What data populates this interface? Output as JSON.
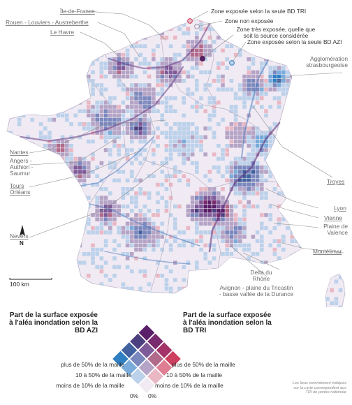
{
  "map": {
    "land_color": "#efeaf3",
    "border_color": "#cfc8d8",
    "water_color": "#ffffff"
  },
  "places_left": [
    {
      "id": "ile-de-france",
      "text": "Île-de-France"
    },
    {
      "id": "rouen",
      "text": "Rouen - Louviers - Austreberthe"
    },
    {
      "id": "le-havre",
      "text": "Le Havre"
    },
    {
      "id": "nantes",
      "text": "Nantes"
    },
    {
      "id": "angers",
      "text": "Angers - Authion - Saumur"
    },
    {
      "id": "tours",
      "text": "Tours"
    },
    {
      "id": "orleans",
      "text": "Orléans"
    },
    {
      "id": "nevers",
      "text": "Nevers"
    }
  ],
  "places_right": [
    {
      "id": "strasbourg",
      "text": "Agglomération strasbourgeoise"
    },
    {
      "id": "troyes",
      "text": "Troyes"
    },
    {
      "id": "lyon",
      "text": "Lyon"
    },
    {
      "id": "vienne",
      "text": "Vienne"
    },
    {
      "id": "valence",
      "text": "Plaine de Valence"
    },
    {
      "id": "montelimar",
      "text": "Montélimar"
    },
    {
      "id": "delta-rhone",
      "text": "Delta du Rhône"
    },
    {
      "id": "avignon",
      "text": "Avignon - plaine du Tricastin - basse vallée de la Durance"
    }
  ],
  "callouts": {
    "tri_only": "Zone exposée selon la seule BD TRI",
    "not_exposed": "Zone non exposée",
    "highly_exposed": "Zone très exposée, quelle que soit la source considérée",
    "azi_only": "Zone exposée selon la seule BD AZI"
  },
  "north": "N",
  "scale": "100 km",
  "legend": {
    "azi_title": "Part de la surface exposée à l'aléa inondation selon la BD AZI",
    "tri_title": "Part de la surface exposée à l'aléa inondation selon la BD TRI",
    "rows_left": [
      "plus de 50% de la maille",
      "10 à 50% de la maille",
      "moins de 10% de la maille"
    ],
    "rows_right": [
      "plus de 50% de la maille",
      "10 à 50% de la maille",
      "moins de 10% de la maille"
    ],
    "zero_left": "0%",
    "zero_right": "0%",
    "colors": [
      [
        "#f1eaf3",
        "#e9b8c4",
        "#df7d92",
        "#cc3f5e"
      ],
      [
        "#bcd1ea",
        "#b5a4c6",
        "#b26a8b",
        "#a33368"
      ],
      [
        "#79acdb",
        "#7a88bd",
        "#7f5a98",
        "#7a2a6f"
      ],
      [
        "#2f7fc2",
        "#41629f",
        "#4c3f80",
        "#5a1f68"
      ]
    ]
  },
  "note": "Les lieux nommément indiqués sur la carte correspondent aux TRI de portée nationale"
}
